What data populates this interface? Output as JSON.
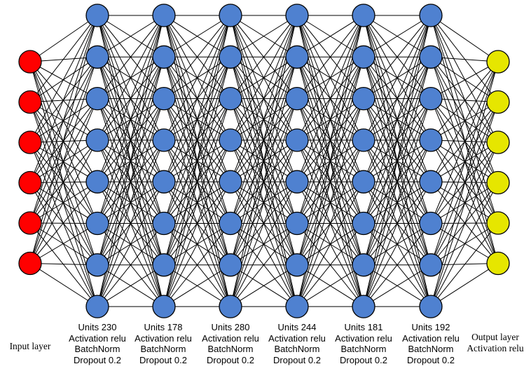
{
  "colors": {
    "input_node": "#ff0000",
    "hidden_node": "#4f81d0",
    "output_node": "#e6e600",
    "node_stroke": "#000000",
    "edge": "#000000"
  },
  "layers": [
    {
      "kind": "input",
      "nodes": 6,
      "label_lines": [
        "Input layer"
      ]
    },
    {
      "kind": "hidden",
      "nodes": 8,
      "label_lines": [
        "Units 230",
        "Activation relu",
        "BatchNorm",
        "Dropout 0.2"
      ]
    },
    {
      "kind": "hidden",
      "nodes": 8,
      "label_lines": [
        "Units 178",
        "Activation relu",
        "BatchNorm",
        "Dropout 0.2"
      ]
    },
    {
      "kind": "hidden",
      "nodes": 8,
      "label_lines": [
        "Units 280",
        "Activation relu",
        "BatchNorm",
        "Dropout 0.2"
      ]
    },
    {
      "kind": "hidden",
      "nodes": 8,
      "label_lines": [
        "Units 244",
        "Activation relu",
        "BatchNorm",
        "Dropout 0.2"
      ]
    },
    {
      "kind": "hidden",
      "nodes": 8,
      "label_lines": [
        "Units 181",
        "Activation relu",
        "BatchNorm",
        "Dropout 0.2"
      ]
    },
    {
      "kind": "hidden",
      "nodes": 8,
      "label_lines": [
        "Units 192",
        "Activation relu",
        "BatchNorm",
        "Dropout 0.2"
      ]
    },
    {
      "kind": "output",
      "nodes": 6,
      "label_lines": [
        "Output layer",
        "Activation relu"
      ]
    }
  ]
}
